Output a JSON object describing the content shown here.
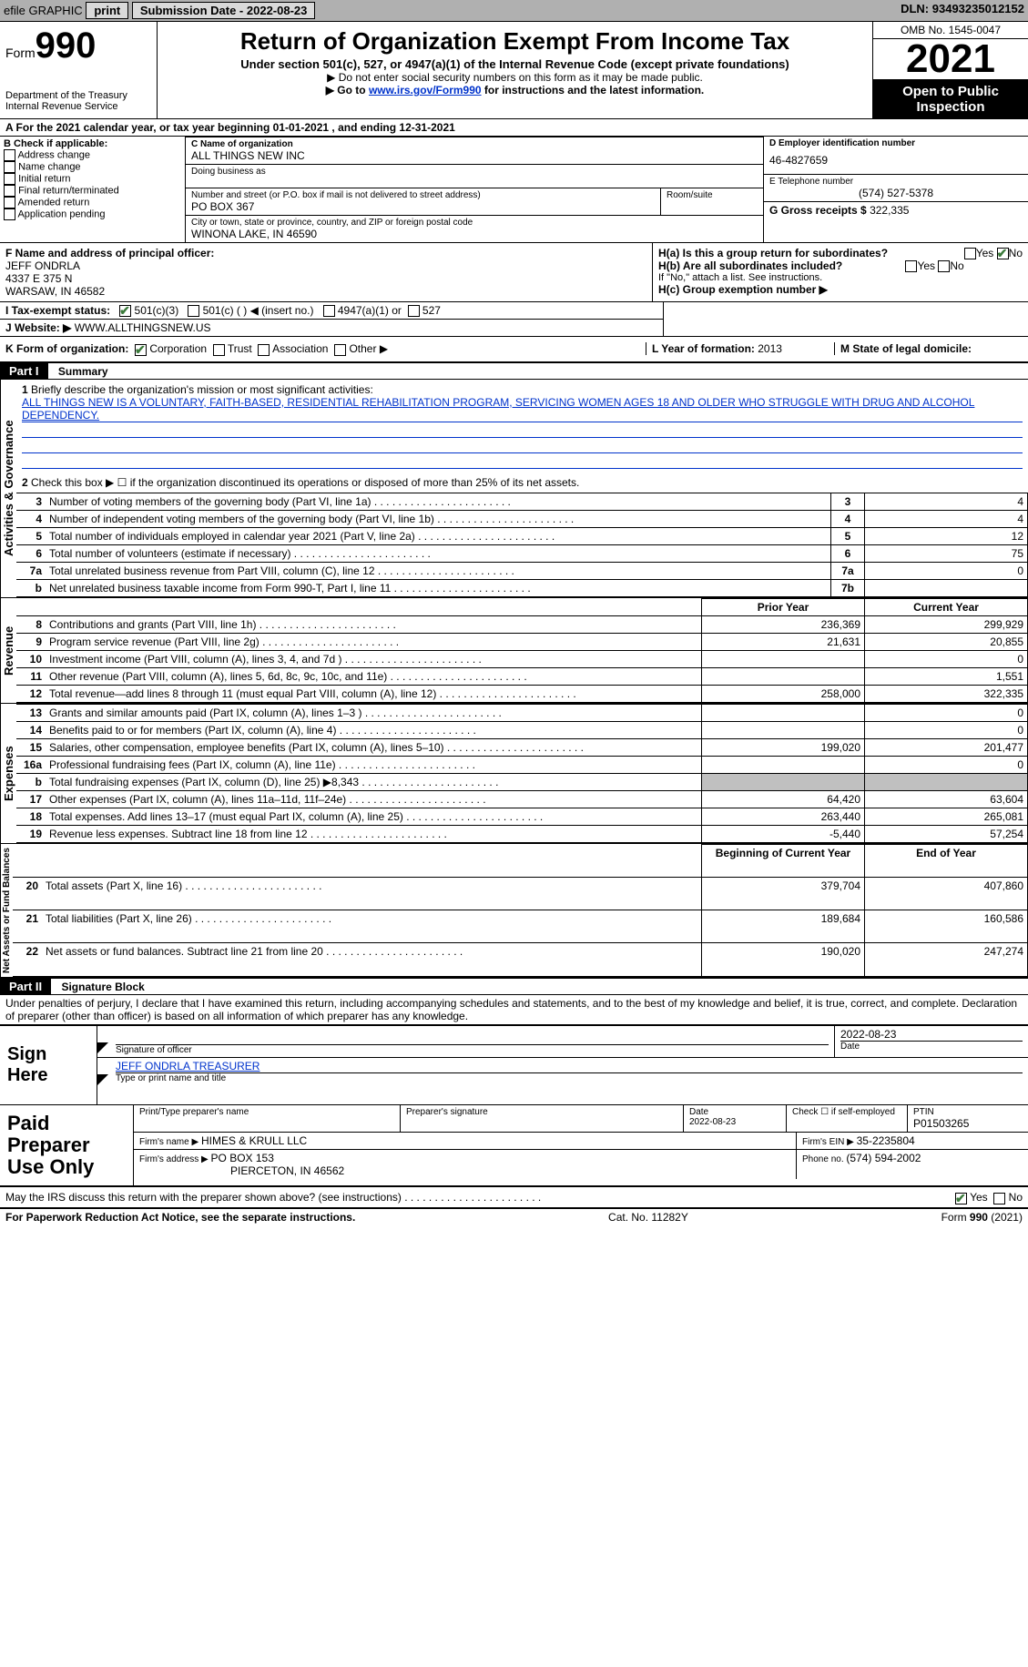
{
  "topbar": {
    "efile": "efile GRAPHIC",
    "print": "print",
    "submission_label": "Submission Date - ",
    "submission_date": "2022-08-23",
    "dln_label": "DLN: ",
    "dln": "93493235012152"
  },
  "header": {
    "form_word": "Form",
    "form_no": "990",
    "dept": "Department of the Treasury",
    "irs": "Internal Revenue Service",
    "title": "Return of Organization Exempt From Income Tax",
    "subtitle": "Under section 501(c), 527, or 4947(a)(1) of the Internal Revenue Code (except private foundations)",
    "note1": "▶ Do not enter social security numbers on this form as it may be made public.",
    "note2_a": "▶ Go to ",
    "note2_link": "www.irs.gov/Form990",
    "note2_b": " for instructions and the latest information.",
    "omb": "OMB No. 1545-0047",
    "year": "2021",
    "inspect1": "Open to Public",
    "inspect2": "Inspection"
  },
  "rowA": {
    "text_a": "A For the 2021 calendar year, or tax year beginning ",
    "begin": "01-01-2021",
    "text_b": " , and ending ",
    "end": "12-31-2021"
  },
  "boxB": {
    "title": "B Check if applicable:",
    "opts": [
      "Address change",
      "Name change",
      "Initial return",
      "Final return/terminated",
      "Amended return",
      "Application pending"
    ]
  },
  "boxC": {
    "name_label": "C Name of organization",
    "name": "ALL THINGS NEW INC",
    "dba_label": "Doing business as",
    "street_label": "Number and street (or P.O. box if mail is not delivered to street address)",
    "room_label": "Room/suite",
    "street": "PO BOX 367",
    "city_label": "City or town, state or province, country, and ZIP or foreign postal code",
    "city": "WINONA LAKE, IN  46590"
  },
  "boxD": {
    "label": "D Employer identification number",
    "value": "46-4827659"
  },
  "boxE": {
    "label": "E Telephone number",
    "value": "(574) 527-5378"
  },
  "boxG": {
    "label": "G Gross receipts $ ",
    "value": "322,335"
  },
  "boxF": {
    "label": "F Name and address of principal officer:",
    "name": "JEFF ONDRLA",
    "addr1": "4337 E 375 N",
    "addr2": "WARSAW, IN  46582"
  },
  "boxH": {
    "ha": "H(a)  Is this a group return for subordinates?",
    "hb": "H(b)  Are all subordinates included?",
    "hb_note": "If \"No,\" attach a list. See instructions.",
    "hc": "H(c)  Group exemption number ▶",
    "yes": "Yes",
    "no": "No"
  },
  "rowI": {
    "label": "I   Tax-exempt status:",
    "o1": "501(c)(3)",
    "o2": "501(c) (   ) ◀ (insert no.)",
    "o3": "4947(a)(1) or",
    "o4": "527"
  },
  "rowJ": {
    "label": "J   Website: ▶",
    "value": "  WWW.ALLTHINGSNEW.US"
  },
  "rowK": {
    "label": "K Form of organization:",
    "o1": "Corporation",
    "o2": "Trust",
    "o3": "Association",
    "o4": "Other ▶"
  },
  "rowL": {
    "label": "L Year of formation: ",
    "value": "2013"
  },
  "rowM": {
    "label": "M State of legal domicile:",
    "value": ""
  },
  "part1": {
    "bar": "Part I",
    "title": "Summary",
    "q1": "Briefly describe the organization's mission or most significant activities:",
    "mission": "ALL THINGS NEW IS A VOLUNTARY, FAITH-BASED, RESIDENTIAL REHABILITATION PROGRAM, SERVICING WOMEN AGES 18 AND OLDER WHO STRUGGLE WITH DRUG AND ALCOHOL DEPENDENCY.",
    "q2": "Check this box ▶ ☐  if the organization discontinued its operations or disposed of more than 25% of its net assets.",
    "lines_gov": [
      {
        "n": "3",
        "t": "Number of voting members of the governing body (Part VI, line 1a)",
        "box": "3",
        "v": "4"
      },
      {
        "n": "4",
        "t": "Number of independent voting members of the governing body (Part VI, line 1b)",
        "box": "4",
        "v": "4"
      },
      {
        "n": "5",
        "t": "Total number of individuals employed in calendar year 2021 (Part V, line 2a)",
        "box": "5",
        "v": "12"
      },
      {
        "n": "6",
        "t": "Total number of volunteers (estimate if necessary)",
        "box": "6",
        "v": "75"
      },
      {
        "n": "7a",
        "t": "Total unrelated business revenue from Part VIII, column (C), line 12",
        "box": "7a",
        "v": "0"
      },
      {
        "n": "b",
        "t": "Net unrelated business taxable income from Form 990-T, Part I, line 11",
        "box": "7b",
        "v": ""
      }
    ],
    "hdr_prior": "Prior Year",
    "hdr_current": "Current Year",
    "rev": [
      {
        "n": "8",
        "t": "Contributions and grants (Part VIII, line 1h)",
        "p": "236,369",
        "c": "299,929"
      },
      {
        "n": "9",
        "t": "Program service revenue (Part VIII, line 2g)",
        "p": "21,631",
        "c": "20,855"
      },
      {
        "n": "10",
        "t": "Investment income (Part VIII, column (A), lines 3, 4, and 7d )",
        "p": "",
        "c": "0"
      },
      {
        "n": "11",
        "t": "Other revenue (Part VIII, column (A), lines 5, 6d, 8c, 9c, 10c, and 11e)",
        "p": "",
        "c": "1,551"
      },
      {
        "n": "12",
        "t": "Total revenue—add lines 8 through 11 (must equal Part VIII, column (A), line 12)",
        "p": "258,000",
        "c": "322,335"
      }
    ],
    "exp": [
      {
        "n": "13",
        "t": "Grants and similar amounts paid (Part IX, column (A), lines 1–3 )",
        "p": "",
        "c": "0"
      },
      {
        "n": "14",
        "t": "Benefits paid to or for members (Part IX, column (A), line 4)",
        "p": "",
        "c": "0"
      },
      {
        "n": "15",
        "t": "Salaries, other compensation, employee benefits (Part IX, column (A), lines 5–10)",
        "p": "199,020",
        "c": "201,477"
      },
      {
        "n": "16a",
        "t": "Professional fundraising fees (Part IX, column (A), line 11e)",
        "p": "",
        "c": "0"
      },
      {
        "n": "b",
        "t": "Total fundraising expenses (Part IX, column (D), line 25) ▶8,343",
        "p": "SHADE",
        "c": "SHADE"
      },
      {
        "n": "17",
        "t": "Other expenses (Part IX, column (A), lines 11a–11d, 11f–24e)",
        "p": "64,420",
        "c": "63,604"
      },
      {
        "n": "18",
        "t": "Total expenses. Add lines 13–17 (must equal Part IX, column (A), line 25)",
        "p": "263,440",
        "c": "265,081"
      },
      {
        "n": "19",
        "t": "Revenue less expenses. Subtract line 18 from line 12",
        "p": "-5,440",
        "c": "57,254"
      }
    ],
    "hdr_begin": "Beginning of Current Year",
    "hdr_end": "End of Year",
    "net": [
      {
        "n": "20",
        "t": "Total assets (Part X, line 16)",
        "p": "379,704",
        "c": "407,860"
      },
      {
        "n": "21",
        "t": "Total liabilities (Part X, line 26)",
        "p": "189,684",
        "c": "160,586"
      },
      {
        "n": "22",
        "t": "Net assets or fund balances. Subtract line 21 from line 20",
        "p": "190,020",
        "c": "247,274"
      }
    ],
    "vlabel_gov": "Activities & Governance",
    "vlabel_rev": "Revenue",
    "vlabel_exp": "Expenses",
    "vlabel_net": "Net Assets or Fund Balances"
  },
  "part2": {
    "bar": "Part II",
    "title": "Signature Block",
    "decl": "Under penalties of perjury, I declare that I have examined this return, including accompanying schedules and statements, and to the best of my knowledge and belief, it is true, correct, and complete. Declaration of preparer (other than officer) is based on all information of which preparer has any knowledge.",
    "sign_here": "Sign Here",
    "sig_officer": "Signature of officer",
    "sig_date": "2022-08-23",
    "date_lbl": "Date",
    "name_title": "JEFF ONDRLA TREASURER",
    "name_title_lbl": "Type or print name and title",
    "paid_prep": "Paid Preparer Use Only",
    "pt_name_lbl": "Print/Type preparer's name",
    "pt_sig_lbl": "Preparer's signature",
    "pt_date_lbl": "Date",
    "pt_date": "2022-08-23",
    "pt_check": "Check ☐ if self-employed",
    "ptin_lbl": "PTIN",
    "ptin": "P01503265",
    "firm_name_lbl": "Firm's name    ▶ ",
    "firm_name": "HIMES & KRULL LLC",
    "firm_ein_lbl": "Firm's EIN ▶ ",
    "firm_ein": "35-2235804",
    "firm_addr_lbl": "Firm's address ▶ ",
    "firm_addr1": "PO BOX 153",
    "firm_addr2": "PIERCETON, IN  46562",
    "firm_phone_lbl": "Phone no. ",
    "firm_phone": "(574) 594-2002",
    "discuss": "May the IRS discuss this return with the preparer shown above? (see instructions)",
    "yes": "Yes",
    "no": "No"
  },
  "footer": {
    "left": "For Paperwork Reduction Act Notice, see the separate instructions.",
    "mid": "Cat. No. 11282Y",
    "right": "Form 990 (2021)"
  }
}
